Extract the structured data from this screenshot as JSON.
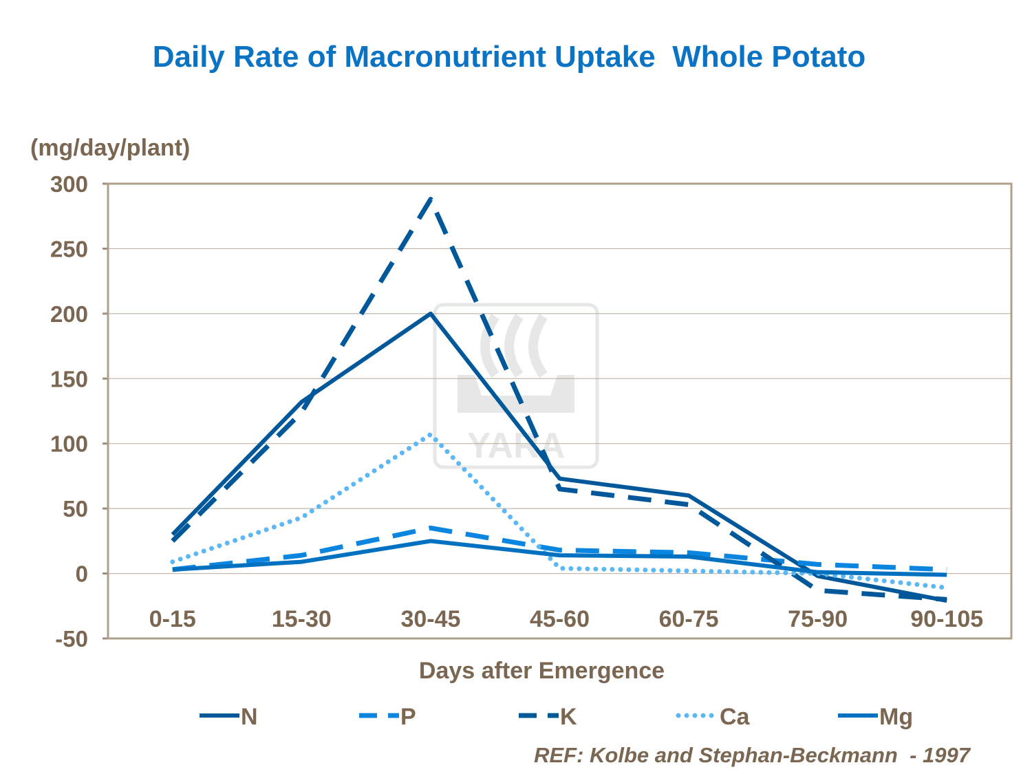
{
  "chart_data": {
    "type": "line",
    "title": "Daily Rate of Macronutrient Uptake  Whole Potato",
    "ylabel": "(mg/day/plant)",
    "xlabel": "Days after Emergence",
    "categories": [
      "0-15",
      "15-30",
      "30-45",
      "45-60",
      "60-75",
      "75-90",
      "90-105"
    ],
    "ylim": [
      -50,
      300
    ],
    "yticks": [
      300,
      250,
      200,
      150,
      100,
      50,
      0,
      -50
    ],
    "grid": true,
    "legend_position": "bottom",
    "series": [
      {
        "name": "N",
        "values": [
          30,
          132,
          200,
          73,
          60,
          -2,
          -21
        ],
        "color": "#00589A",
        "style": "solid"
      },
      {
        "name": "P",
        "values": [
          3,
          14,
          35,
          18,
          16,
          7,
          3
        ],
        "color": "#0A86E0",
        "style": "dashed"
      },
      {
        "name": "K",
        "values": [
          25,
          124,
          288,
          65,
          53,
          -13,
          -20
        ],
        "color": "#00589A",
        "style": "dashed"
      },
      {
        "name": "Ca",
        "values": [
          9,
          43,
          107,
          4,
          2,
          0,
          -11
        ],
        "color": "#5BB8F5",
        "style": "dotted"
      },
      {
        "name": "Mg",
        "values": [
          3,
          9,
          25,
          14,
          13,
          1,
          -1
        ],
        "color": "#0070C0",
        "style": "solid"
      }
    ]
  },
  "watermark": "YARA",
  "reference": "REF: Kolbe and Stephan-Beckmann  - 1997"
}
